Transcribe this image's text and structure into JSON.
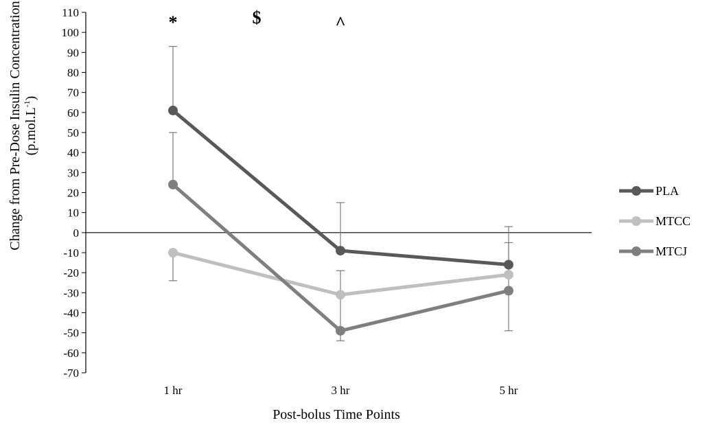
{
  "chart_data": {
    "type": "line",
    "categories": [
      "1 hr",
      "3 hr",
      "5 hr"
    ],
    "xlabel": "Post-bolus Time Points",
    "ylabel_line1": "Change from Pre-Dose Insulin Concentration",
    "ylabel_line2_prefix": "(p.mol.L",
    "ylabel_line2_sup": "-1",
    "ylabel_line2_suffix": ")",
    "ylim": [
      -70,
      110
    ],
    "ytick_step": 10,
    "grid": false,
    "legend_position": "right",
    "series": [
      {
        "name": "PLA",
        "color": "#595959",
        "values": [
          61,
          -9,
          -16
        ],
        "err_up": [
          32,
          24,
          19
        ],
        "err_down": [
          0,
          0,
          0
        ]
      },
      {
        "name": "MTCC",
        "color": "#bfbfbf",
        "values": [
          -10,
          -31,
          -21
        ],
        "err_up": [
          0,
          0,
          0
        ],
        "err_down": [
          14,
          0,
          0
        ]
      },
      {
        "name": "MTCJ",
        "color": "#7f7f7f",
        "values": [
          24,
          -49,
          -29
        ],
        "err_up": [
          26,
          30,
          24
        ],
        "err_down": [
          0,
          5,
          20
        ]
      }
    ],
    "annotations": [
      {
        "text": "*",
        "x": "1 hr"
      },
      {
        "text": "$",
        "x": "2 hr"
      },
      {
        "text": "^",
        "x": "3 hr"
      }
    ]
  }
}
